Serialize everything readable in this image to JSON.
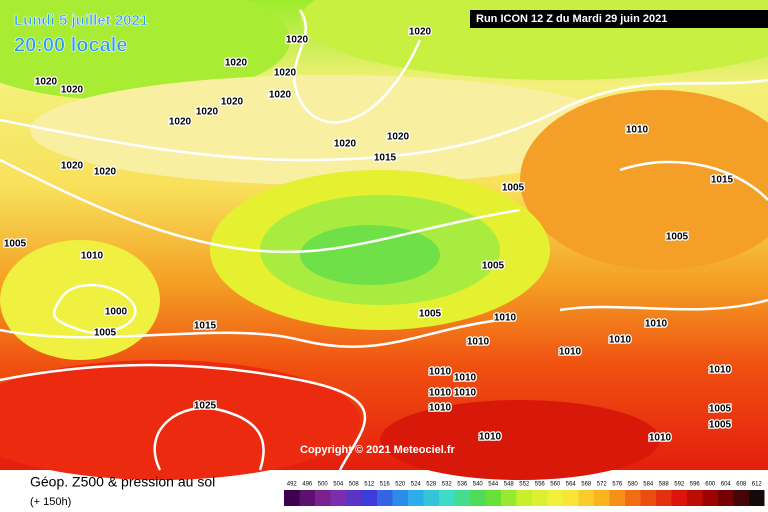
{
  "header": {
    "date": "Lundi 5 juillet 2021",
    "time": "20:00 locale",
    "run": "Run ICON 12 Z du Mardi 29 juin 2021"
  },
  "copyright": "Copyright © 2021 Meteociel.fr",
  "legend": {
    "title": "Géop. Z500 & pression au sol",
    "subtitle": "(+ 150h)",
    "scale": [
      "492",
      "496",
      "500",
      "504",
      "508",
      "512",
      "516",
      "520",
      "524",
      "528",
      "532",
      "536",
      "540",
      "544",
      "548",
      "552",
      "556",
      "560",
      "564",
      "568",
      "572",
      "576",
      "580",
      "584",
      "588",
      "592",
      "596",
      "600",
      "604",
      "608",
      "612"
    ]
  },
  "isobar_labels": [
    "1020",
    "1020",
    "1020",
    "1020",
    "1020",
    "1020",
    "1020",
    "1020",
    "1020",
    "1020",
    "1020",
    "1020",
    "1020",
    "1020",
    "1015",
    "1015",
    "1015",
    "1010",
    "1010",
    "1010",
    "1010",
    "1010",
    "1010",
    "1010",
    "1010",
    "1010",
    "1010",
    "1010",
    "1010",
    "1010",
    "1010",
    "1010",
    "1005",
    "1005",
    "1005",
    "1005",
    "1005",
    "1005",
    "1005",
    "1005",
    "1000",
    "1025"
  ]
}
